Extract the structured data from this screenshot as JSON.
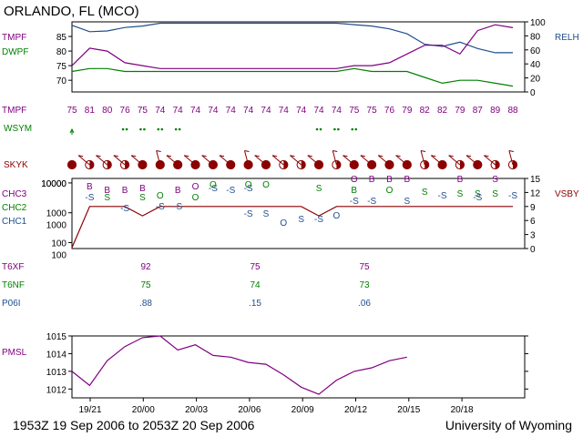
{
  "title": "ORLANDO, FL (MCO)",
  "footer": {
    "left": "1953Z 19 Sep 2006 to 2053Z 20 Sep 2006",
    "right": "University of Wyoming"
  },
  "colors": {
    "tmpf": "#800080",
    "dwpf": "#008000",
    "relh": "#1f4e8c",
    "sky": "#8b0000",
    "pmsl": "#800080",
    "cloud": "#8b0000",
    "axis": "#000000"
  },
  "chart_data": [
    {
      "type": "line",
      "name": "temperature-humidity",
      "series_labels": {
        "tmpf": "TMPF",
        "dwpf": "DWPF",
        "relh": "RELH"
      },
      "y_left": {
        "ticks": [
          70,
          75,
          80,
          85
        ],
        "range": [
          66,
          90
        ]
      },
      "y_right": {
        "ticks": [
          0,
          20,
          40,
          60,
          80,
          100
        ],
        "range": [
          0,
          100
        ]
      },
      "tmpf": [
        75,
        81,
        80,
        76,
        75,
        74,
        74,
        74,
        74,
        74,
        74,
        74,
        74,
        74,
        74,
        74,
        75,
        75,
        76,
        79,
        82,
        82,
        79,
        87,
        89,
        88
      ],
      "dwpf": [
        73,
        74,
        74,
        73,
        73,
        73,
        73,
        73,
        73,
        73,
        73,
        73,
        73,
        73,
        73,
        73,
        74,
        73,
        73,
        73,
        71,
        69,
        70,
        70,
        69,
        68
      ],
      "relh": [
        95,
        86,
        87,
        92,
        94,
        98,
        98,
        98,
        98,
        98,
        98,
        98,
        98,
        98,
        98,
        98,
        96,
        94,
        90,
        83,
        68,
        65,
        71,
        62,
        56,
        56
      ]
    },
    {
      "type": "table",
      "name": "hourly-values",
      "tmpf_label": "TMPF",
      "tmpf": [
        "75",
        "81",
        "80",
        "76",
        "75",
        "74",
        "74",
        "74",
        "74",
        "74",
        "74",
        "74",
        "74",
        "74",
        "74",
        "74",
        "75",
        "75",
        "76",
        "79",
        "82",
        "82",
        "79",
        "87",
        "89",
        "88"
      ],
      "wsym_label": "WSYM",
      "skyk_label": "SKYK",
      "sky_fraction": [
        1,
        0.5,
        0.5,
        0.5,
        1,
        1,
        1,
        1,
        1,
        1,
        1,
        1,
        0.5,
        0.5,
        1,
        0.5,
        1,
        1,
        1,
        1,
        0.5,
        1,
        0.5,
        1,
        0.5,
        0.5
      ]
    },
    {
      "type": "line",
      "name": "clouds-visibility",
      "left_labels": [
        "CHC3",
        "CHC2",
        "CHC1"
      ],
      "right_label": "VSBY",
      "y_left_ticks": [
        "100",
        "1000",
        "10000"
      ],
      "y_left_minor_ticks": [
        "10000",
        "1000",
        "100"
      ],
      "y_right": {
        "ticks": [
          0,
          3,
          6,
          9,
          12,
          15
        ],
        "range": [
          0,
          15
        ]
      },
      "vsby": [
        0.2,
        9,
        9,
        9,
        7,
        9,
        9,
        9,
        9,
        9,
        9,
        9,
        9,
        9,
        7,
        9,
        9,
        9,
        9,
        9,
        9,
        9,
        9,
        9,
        9,
        9
      ]
    },
    {
      "type": "table",
      "name": "mos-values",
      "t6xf_label": "T6XF",
      "t6nf_label": "T6NF",
      "p06i_label": "P06I",
      "t6xf": [
        "92",
        "75",
        "75"
      ],
      "t6nf": [
        "75",
        "74",
        "73"
      ],
      "p06i": [
        ".88",
        ".15",
        ".06"
      ]
    },
    {
      "type": "line",
      "name": "sea-level-pressure",
      "series_label": "PMSL",
      "y": {
        "ticks": [
          1012,
          1013,
          1014,
          1015
        ],
        "range": [
          1011.5,
          1015
        ]
      },
      "x_ticks": [
        "19/21",
        "20/00",
        "20/03",
        "20/06",
        "20/09",
        "20/12",
        "20/15",
        "20/18"
      ],
      "pmsl": [
        1013,
        1012.2,
        1013.6,
        1014.4,
        1014.9,
        1015,
        1014.2,
        1014.5,
        1013.9,
        1013.8,
        1013.5,
        1013.4,
        1012.8,
        1012.1,
        1011.7,
        1012.5,
        1013,
        1013.2,
        1013.6,
        1013.8
      ]
    }
  ]
}
